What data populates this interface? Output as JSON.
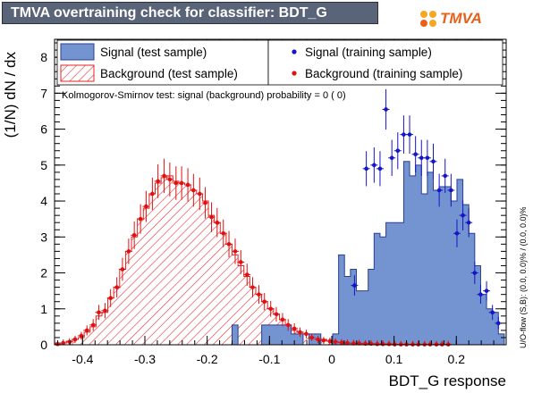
{
  "header": {
    "title": "TMVA overtraining check for classifier: BDT_G",
    "logo_text": "TMVA"
  },
  "colors": {
    "title_bg": "#5a6478",
    "signal_fill": "#7394d0",
    "signal_line": "#2c3e91",
    "background_hatch": "#e42224",
    "signal_points": "#1414c8",
    "background_points": "#e01010"
  },
  "chart_data": {
    "type": "histogram",
    "xlabel": "BDT_G response",
    "ylabel": "(1/N) dN / dx",
    "xlim": [
      -0.445,
      0.28
    ],
    "ylim": [
      0,
      8.5
    ],
    "x_ticks": [
      "-0.4",
      "-0.3",
      "-0.2",
      "-0.1",
      "0",
      "0.1",
      "0.2"
    ],
    "x_tick_values": [
      -0.4,
      -0.3,
      -0.2,
      -0.1,
      0,
      0.1,
      0.2
    ],
    "y_ticks": [
      "0",
      "1",
      "2",
      "3",
      "4",
      "5",
      "6",
      "7",
      "8"
    ],
    "y_tick_values": [
      0,
      1,
      2,
      3,
      4,
      5,
      6,
      7,
      8
    ],
    "bin_edges": [
      -0.445,
      -0.4355,
      -0.426,
      -0.4165,
      -0.407,
      -0.3975,
      -0.388,
      -0.3785,
      -0.369,
      -0.3595,
      -0.35,
      -0.3405,
      -0.331,
      -0.3215,
      -0.312,
      -0.3025,
      -0.293,
      -0.2835,
      -0.274,
      -0.2645,
      -0.255,
      -0.2455,
      -0.236,
      -0.2265,
      -0.217,
      -0.2075,
      -0.198,
      -0.1885,
      -0.179,
      -0.1695,
      -0.16,
      -0.1505,
      -0.141,
      -0.1315,
      -0.122,
      -0.1125,
      -0.103,
      -0.0935,
      -0.084,
      -0.0745,
      -0.065,
      -0.0555,
      -0.046,
      -0.0365,
      -0.027,
      -0.0175,
      -0.008,
      0.0015,
      0.011,
      0.0205,
      0.03,
      0.0395,
      0.049,
      0.0585,
      0.068,
      0.0775,
      0.087,
      0.0965,
      0.106,
      0.1155,
      0.125,
      0.1345,
      0.144,
      0.1535,
      0.163,
      0.1725,
      0.182,
      0.1915,
      0.201,
      0.2105,
      0.22,
      0.2295,
      0.239,
      0.2485,
      0.258,
      0.2675,
      0.277
    ],
    "series": [
      {
        "name": "Signal (test sample)",
        "style": "filled",
        "values": [
          0,
          0,
          0,
          0,
          0,
          0,
          0,
          0,
          0,
          0,
          0,
          0,
          0,
          0,
          0,
          0,
          0,
          0,
          0,
          0,
          0,
          0,
          0,
          0,
          0,
          0,
          0,
          0,
          0,
          0,
          0.55,
          0,
          0,
          0,
          0,
          0.55,
          0.55,
          0.55,
          0.55,
          0.55,
          0.3,
          0.3,
          0,
          0.3,
          0.3,
          0,
          0,
          0.3,
          2.5,
          1.9,
          2.1,
          1.5,
          1.5,
          2.1,
          3.1,
          3.0,
          3.4,
          3.4,
          3.4,
          5.1,
          4.7,
          5.0,
          4.2,
          4.8,
          4.3,
          4.4,
          4.4,
          4.0,
          4.6,
          3.9,
          3.1,
          2.2,
          1.4,
          1.0,
          0.9,
          0.3
        ]
      },
      {
        "name": "Background (test sample)",
        "style": "hatched",
        "values": [
          0.05,
          0.05,
          0.1,
          0.15,
          0.2,
          0.35,
          0.5,
          0.8,
          0.9,
          1.3,
          1.6,
          2.1,
          2.6,
          3.0,
          3.5,
          3.8,
          4.2,
          4.5,
          4.65,
          4.7,
          4.55,
          4.5,
          4.45,
          4.3,
          4.2,
          4.0,
          3.6,
          3.4,
          3.1,
          2.8,
          2.5,
          2.2,
          1.9,
          1.6,
          1.4,
          1.2,
          1.0,
          0.85,
          0.7,
          0.55,
          0.4,
          0.35,
          0.3,
          0.25,
          0.2,
          0.15,
          0.1,
          0.1,
          0.05,
          0.05,
          0.05,
          0.05,
          0.03,
          0.03,
          0.02,
          0.02,
          0.02,
          0.01,
          0.01,
          0.01,
          0.01,
          0.01,
          0.01,
          0.01,
          0.01,
          0,
          0,
          0,
          0,
          0,
          0,
          0,
          0,
          0,
          0,
          0
        ]
      },
      {
        "name": "Signal (training sample)",
        "style": "points",
        "x": [
          0.0365,
          0.0555,
          0.068,
          0.0775,
          0.087,
          0.0965,
          0.106,
          0.1155,
          0.125,
          0.1345,
          0.144,
          0.1535,
          0.163,
          0.1725,
          0.182,
          0.1915,
          0.201,
          0.2105,
          0.22,
          0.2295,
          0.239,
          0.2485,
          0.258,
          0.2675
        ],
        "values": [
          1.65,
          4.9,
          5.0,
          4.9,
          6.55,
          5.2,
          5.4,
          5.85,
          5.85,
          5.3,
          5.2,
          5.2,
          5.1,
          4.3,
          4.7,
          4.3,
          3.1,
          3.6,
          3.4,
          2.0,
          1.4,
          1.5,
          0.9,
          0.6
        ]
      },
      {
        "name": "Background (training sample)",
        "style": "points",
        "x": [
          -0.44,
          -0.431,
          -0.421,
          -0.412,
          -0.402,
          -0.393,
          -0.383,
          -0.374,
          -0.364,
          -0.355,
          -0.345,
          -0.336,
          -0.326,
          -0.317,
          -0.307,
          -0.298,
          -0.288,
          -0.279,
          -0.269,
          -0.26,
          -0.25,
          -0.241,
          -0.231,
          -0.222,
          -0.212,
          -0.203,
          -0.193,
          -0.184,
          -0.174,
          -0.165,
          -0.155,
          -0.146,
          -0.136,
          -0.127,
          -0.117,
          -0.108,
          -0.098,
          -0.089,
          -0.079,
          -0.07,
          -0.06,
          -0.051,
          -0.041,
          -0.032,
          -0.022,
          -0.013,
          -0.003,
          0.006,
          0.016,
          0.025,
          0.035,
          0.044,
          0.054,
          0.063,
          0.073,
          0.082,
          0.092,
          0.101,
          0.111,
          0.12,
          0.13,
          0.139,
          0.149,
          0.158,
          0.168,
          0.177,
          0.187
        ],
        "values": [
          0.02,
          0.05,
          0.08,
          0.15,
          0.25,
          0.4,
          0.55,
          0.9,
          0.95,
          1.3,
          1.6,
          2.1,
          2.6,
          3.05,
          3.5,
          3.85,
          4.2,
          4.55,
          4.7,
          4.6,
          4.5,
          4.5,
          4.45,
          4.3,
          4.2,
          3.95,
          3.55,
          3.4,
          3.1,
          2.8,
          2.6,
          2.3,
          1.95,
          1.6,
          1.4,
          1.2,
          1.0,
          0.85,
          0.7,
          0.55,
          0.45,
          0.35,
          0.3,
          0.2,
          0.15,
          0.12,
          0.1,
          0.08,
          0.06,
          0.05,
          0.04,
          0.04,
          0.03,
          0.03,
          0.02,
          0.02,
          0.02,
          0.01,
          0.01,
          0.01,
          0.01,
          0.01,
          0.01,
          0.01,
          0.01,
          0.01,
          0.01
        ]
      }
    ],
    "legend": [
      {
        "label": "Signal (test sample)",
        "symbol": "box-filled"
      },
      {
        "label": "Signal (training sample)",
        "symbol": "dot-blue"
      },
      {
        "label": "Background (test sample)",
        "symbol": "box-hatched"
      },
      {
        "label": "Background (training sample)",
        "symbol": "dot-red"
      }
    ],
    "legend_placement": "top",
    "annotation": "Kolmogorov-Smirnov test: signal (background) probability =     0 (    0)",
    "side_note": "U/O-flow (S,B): (0.0, 0.0)% / (0.0, 0.0)%"
  }
}
